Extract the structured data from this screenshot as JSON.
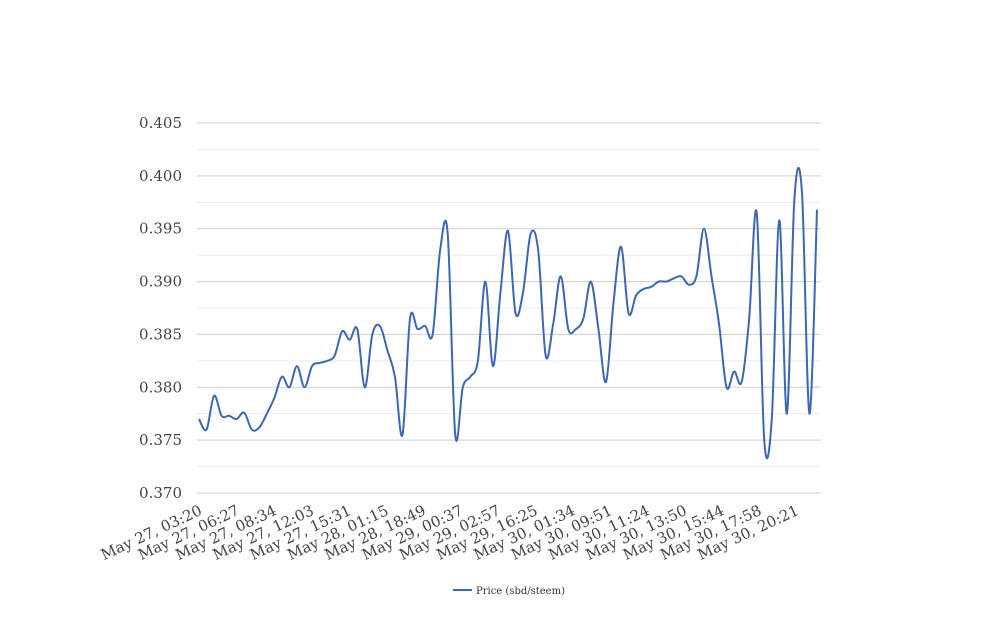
{
  "chart_data": {
    "type": "line",
    "title": "",
    "xlabel": "",
    "ylabel": "",
    "ylim": [
      0.37,
      0.405
    ],
    "y_ticks": [
      "0.370",
      "0.375",
      "0.380",
      "0.385",
      "0.390",
      "0.395",
      "0.400",
      "0.405"
    ],
    "y_tick_values": [
      0.37,
      0.375,
      0.38,
      0.385,
      0.39,
      0.395,
      0.4,
      0.405
    ],
    "grid": true,
    "legend_position": "bottom-center",
    "x_tick_labels": [
      "May 27, 03:20",
      "May 27, 06:27",
      "May 27, 08:34",
      "May 27, 12:03",
      "May 27, 15:31",
      "May 28, 01:15",
      "May 28, 18:49",
      "May 29, 00:37",
      "May 29, 02:57",
      "May 29, 16:25",
      "May 30, 01:34",
      "May 30, 09:51",
      "May 30, 11:24",
      "May 30, 13:50",
      "May 30, 15:44",
      "May 30, 17:58",
      "May 30, 20:21"
    ],
    "series": [
      {
        "name": "Price (sbd/steem)",
        "color": "#3b67b8",
        "values": [
          0.377,
          0.376,
          0.3792,
          0.3773,
          0.3773,
          0.377,
          0.3776,
          0.376,
          0.3762,
          0.3775,
          0.379,
          0.381,
          0.38,
          0.382,
          0.38,
          0.382,
          0.3823,
          0.3825,
          0.383,
          0.3853,
          0.3845,
          0.3855,
          0.38,
          0.385,
          0.3858,
          0.3835,
          0.381,
          0.3755,
          0.3865,
          0.3855,
          0.3858,
          0.385,
          0.393,
          0.3945,
          0.3755,
          0.38,
          0.381,
          0.3825,
          0.39,
          0.382,
          0.389,
          0.3948,
          0.387,
          0.389,
          0.3945,
          0.393,
          0.383,
          0.386,
          0.3905,
          0.3855,
          0.3855,
          0.3865,
          0.39,
          0.3855,
          0.3805,
          0.388,
          0.3933,
          0.387,
          0.3887,
          0.3893,
          0.3895,
          0.39,
          0.39,
          0.3903,
          0.3905,
          0.3897,
          0.3905,
          0.395,
          0.3905,
          0.386,
          0.38,
          0.3815,
          0.3805,
          0.3865,
          0.3965,
          0.375,
          0.377,
          0.3958,
          0.3775,
          0.3978,
          0.3985,
          0.3775,
          0.3968
        ]
      }
    ]
  }
}
